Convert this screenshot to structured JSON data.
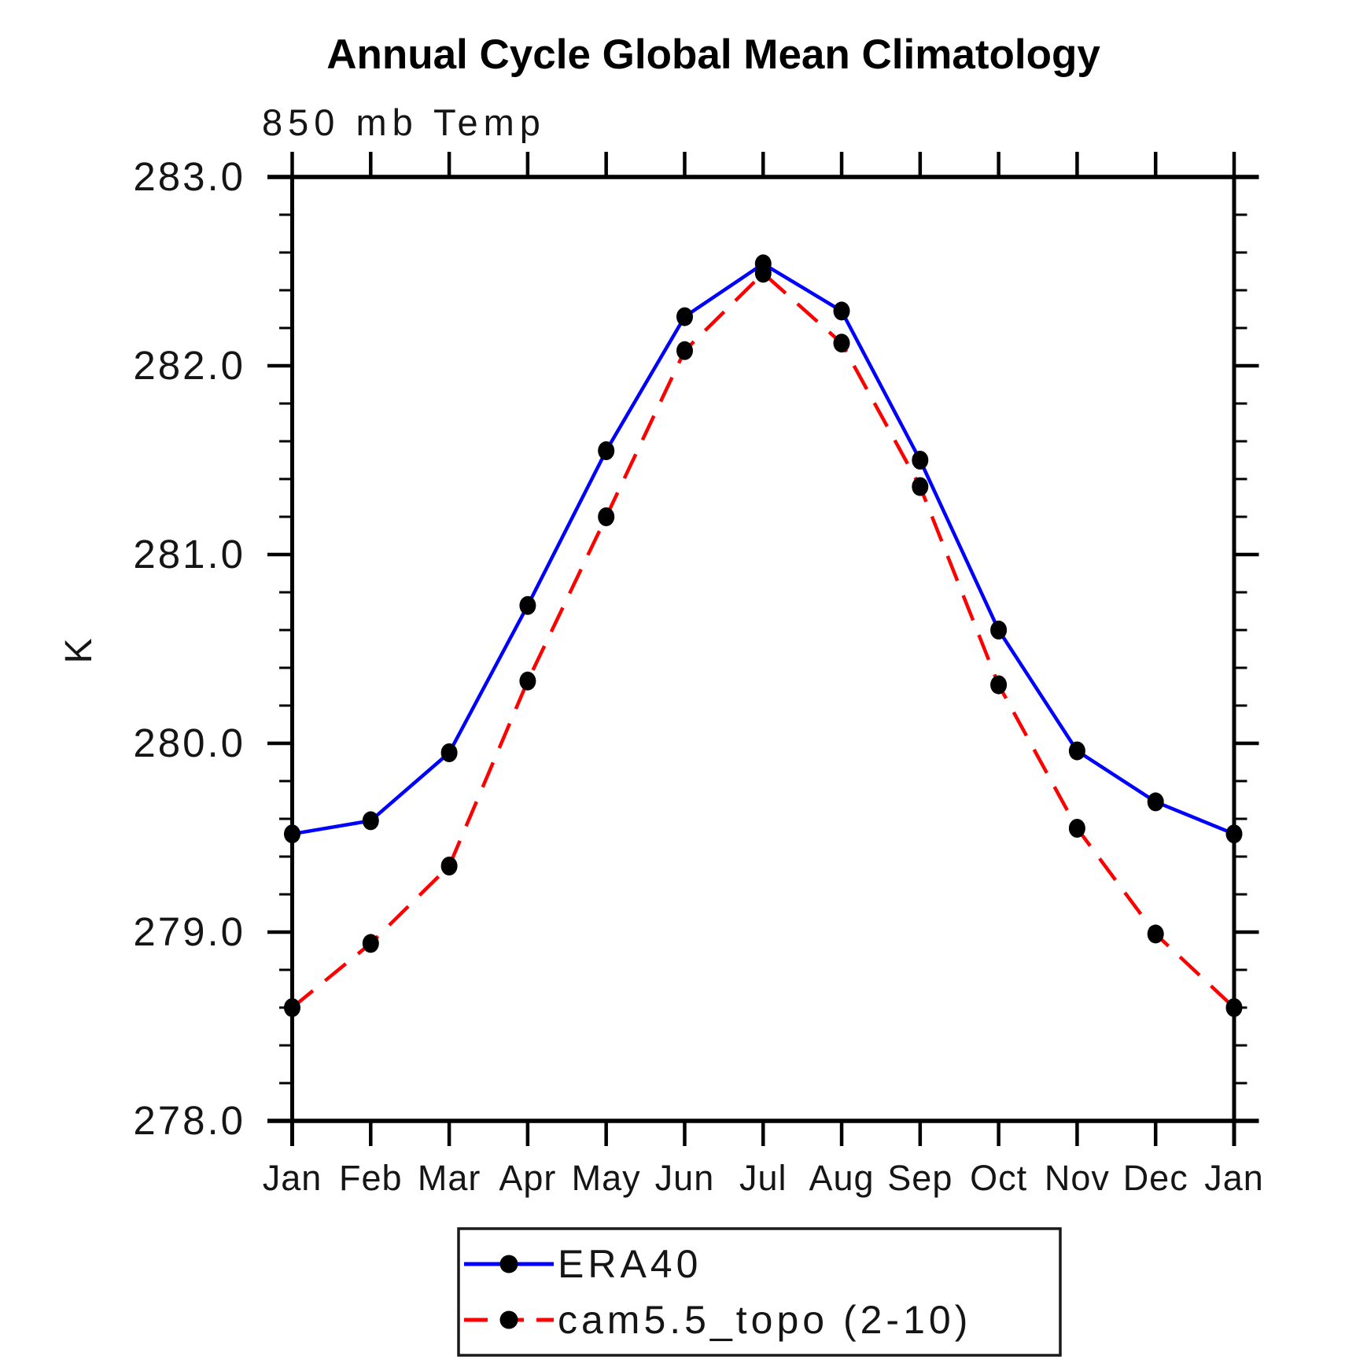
{
  "page": {
    "title": "Annual Cycle Global Mean Climatology",
    "subtitle": "850 mb Temp"
  },
  "chart_data": {
    "type": "line",
    "title": "Annual Cycle Global Mean Climatology",
    "subtitle": "850 mb Temp",
    "xlabel": "",
    "ylabel": "K",
    "x_tick_labels": [
      "Jan",
      "Feb",
      "Mar",
      "Apr",
      "May",
      "Jun",
      "Jul",
      "Aug",
      "Sep",
      "Oct",
      "Nov",
      "Dec",
      "Jan"
    ],
    "ylim": [
      278.0,
      283.0
    ],
    "y_major_ticks": [
      278.0,
      279.0,
      280.0,
      281.0,
      282.0,
      283.0
    ],
    "y_tick_labels": [
      "278.0",
      "279.0",
      "280.0",
      "281.0",
      "282.0",
      "283.0"
    ],
    "y_minor_step": 0.2,
    "grid": false,
    "legend_position": "bottom-center",
    "axis_color": "#000000",
    "marker": "filled-circle",
    "marker_color": "#000000",
    "series": [
      {
        "name": "ERA40",
        "color": "#0000ff",
        "line_style": "solid",
        "values": [
          279.52,
          279.59,
          279.95,
          280.73,
          281.55,
          282.26,
          282.54,
          282.29,
          281.5,
          280.6,
          279.96,
          279.69,
          279.52
        ]
      },
      {
        "name": "cam5.5_topo (2-10)",
        "color": "#ff0000",
        "line_style": "dashed",
        "values": [
          278.6,
          278.94,
          279.35,
          280.33,
          281.2,
          282.08,
          282.49,
          282.12,
          281.36,
          280.31,
          279.55,
          278.99,
          278.6
        ]
      }
    ]
  }
}
